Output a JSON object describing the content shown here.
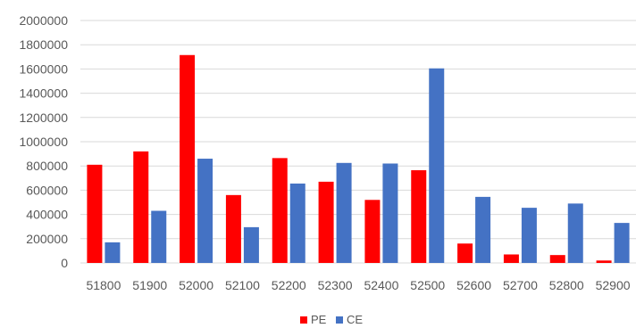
{
  "chart_data": {
    "type": "bar",
    "title": "",
    "xlabel": "",
    "ylabel": "",
    "categories": [
      "51800",
      "51900",
      "52000",
      "52100",
      "52200",
      "52300",
      "52400",
      "52500",
      "52600",
      "52700",
      "52800",
      "52900"
    ],
    "series": [
      {
        "name": "PE",
        "color": "#ff0000",
        "values": [
          810000,
          920000,
          1715000,
          560000,
          865000,
          670000,
          520000,
          765000,
          160000,
          70000,
          65000,
          20000
        ]
      },
      {
        "name": "CE",
        "color": "#4472c4",
        "values": [
          170000,
          430000,
          860000,
          295000,
          655000,
          825000,
          820000,
          1605000,
          545000,
          455000,
          490000,
          330000
        ]
      }
    ],
    "ylim": [
      0,
      2000000
    ],
    "yticks": [
      0,
      200000,
      400000,
      600000,
      800000,
      1000000,
      1200000,
      1400000,
      1600000,
      1800000,
      2000000
    ],
    "ytick_labels": [
      "0",
      "200000",
      "400000",
      "600000",
      "800000",
      "1000000",
      "1200000",
      "1400000",
      "1600000",
      "1800000",
      "2000000"
    ],
    "grid": true,
    "legend_position": "bottom"
  }
}
